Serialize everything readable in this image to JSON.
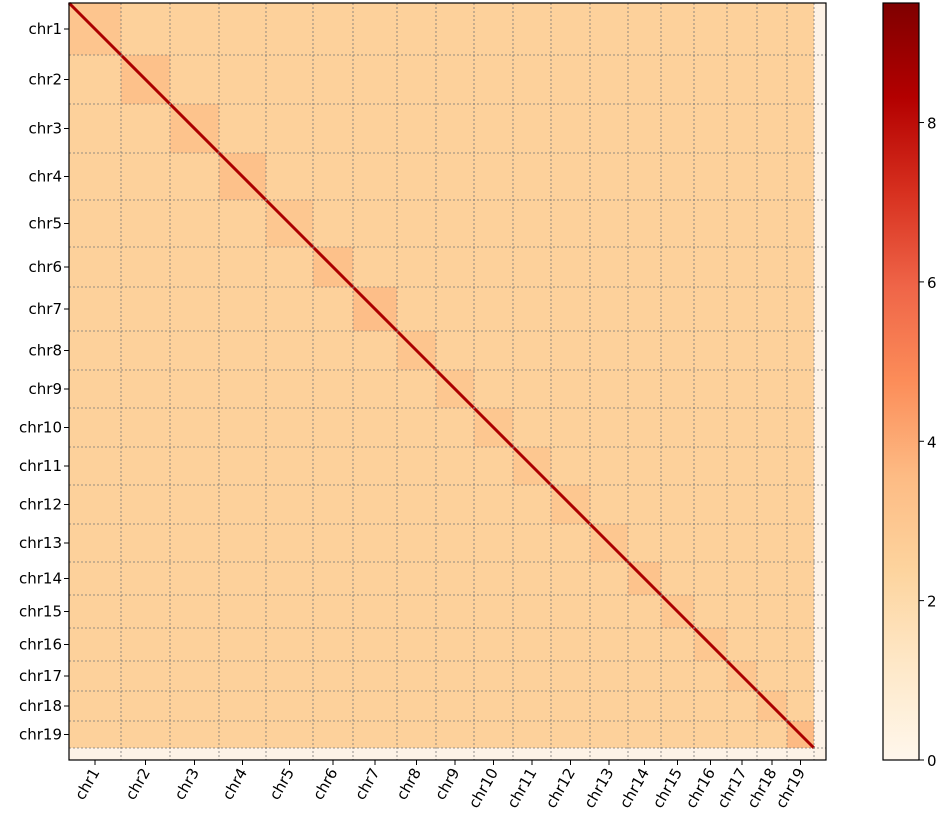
{
  "chart_data": {
    "type": "heatmap",
    "categories": [
      "chr1",
      "chr2",
      "chr3",
      "chr4",
      "chr5",
      "chr6",
      "chr7",
      "chr8",
      "chr9",
      "chr10",
      "chr11",
      "chr12",
      "chr13",
      "chr14",
      "chr15",
      "chr16",
      "chr17",
      "chr18",
      "chr19"
    ],
    "lengths": [
      52,
      49,
      49,
      47,
      47,
      40,
      44,
      39,
      38,
      39,
      38,
      39,
      38,
      33,
      33,
      33,
      30,
      30,
      27
    ],
    "xlim": [
      0,
      757
    ],
    "intra_values": [
      3.1,
      3.3,
      3.2,
      3.3,
      3.0,
      3.3,
      3.4,
      3.1,
      3.0,
      3.0,
      3.0,
      3.0,
      3.0,
      3.2,
      3.0,
      3.0,
      3.0,
      3.1,
      3.6
    ],
    "inter_value": 2.5,
    "diagonal_values": [
      8.5,
      8.5,
      8.5,
      8.5,
      8.5,
      8.5,
      8.5,
      8.5,
      8.5,
      8.5,
      8.5,
      8.5,
      8.5,
      8.5,
      8.5,
      8.5,
      8.5,
      8.5,
      8.5
    ],
    "colorbar": {
      "lim": [
        0,
        9.5
      ],
      "ticks": [
        0,
        2,
        4,
        6,
        8
      ],
      "colors": [
        "#fff7ec",
        "#fee8c8",
        "#fdd49e",
        "#fdbb84",
        "#fc8d59",
        "#ef6548",
        "#d7301f",
        "#b30000",
        "#7f0000"
      ]
    }
  }
}
